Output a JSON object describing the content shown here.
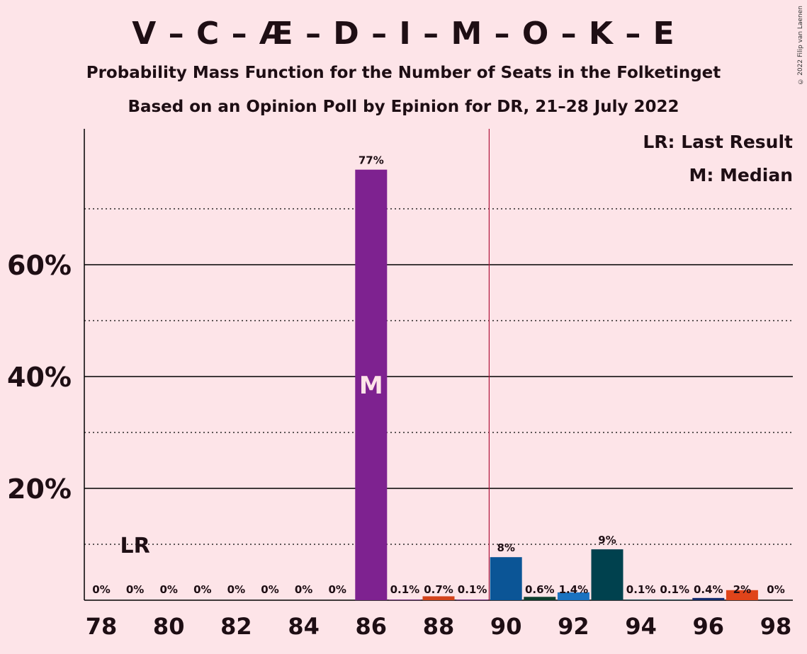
{
  "title": "V – C – Æ – D – I – M – O – K – E",
  "subtitle": "Probability Mass Function for the Number of Seats in the Folketinget",
  "subtitle2": "Based on an Opinion Poll by Epinion for DR, 21–28 July 2022",
  "copyright": "© 2022 Filip van Laenen",
  "legend": {
    "lr": "LR: Last Result",
    "m": "M: Median"
  },
  "chart_data": {
    "type": "bar",
    "x": [
      78,
      79,
      80,
      81,
      82,
      83,
      84,
      85,
      86,
      87,
      88,
      89,
      90,
      91,
      92,
      93,
      94,
      95,
      96,
      97,
      98
    ],
    "values": [
      0,
      0,
      0,
      0,
      0,
      0,
      0,
      0,
      77,
      0.1,
      0.7,
      0.1,
      7.7,
      0.6,
      1.4,
      9.1,
      0.1,
      0.1,
      0.4,
      1.8,
      0
    ],
    "labels": [
      "0%",
      "0%",
      "0%",
      "0%",
      "0%",
      "0%",
      "0%",
      "0%",
      "77%",
      "0.1%",
      "0.7%",
      "0.1%",
      "8%",
      "0.6%",
      "1.4%",
      "9%",
      "0.1%",
      "0.1%",
      "0.4%",
      "2%",
      "0%"
    ],
    "colors": [
      "#7b1f8c",
      "#7b1f8c",
      "#7b1f8c",
      "#7b1f8c",
      "#7b1f8c",
      "#7b1f8c",
      "#7b1f8c",
      "#7b1f8c",
      "#7e2290",
      "#7e2290",
      "#d3431c",
      "#7e2290",
      "#0b5596",
      "#0d3f2e",
      "#1b72c0",
      "#00414e",
      "#00414e",
      "#00414e",
      "#122a6e",
      "#e0441a",
      "#7e2290"
    ],
    "x_ticks": [
      78,
      80,
      82,
      84,
      86,
      88,
      90,
      92,
      94,
      96,
      98
    ],
    "y_ticks": [
      20,
      40,
      60
    ],
    "y_tick_labels": [
      "20%",
      "40%",
      "60%"
    ],
    "ylim": [
      0,
      84
    ],
    "majority_line_x": 89.5,
    "last_result_x": 79,
    "last_result_label": "LR",
    "median_x": 86,
    "median_label": "M"
  }
}
